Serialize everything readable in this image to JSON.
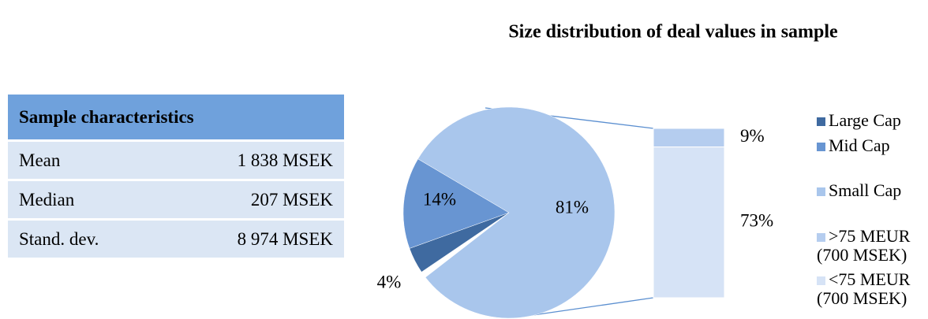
{
  "table": {
    "header": "Sample characteristics",
    "rows": [
      [
        "Mean",
        "1 838 MSEK"
      ],
      [
        "Median",
        "207 MSEK"
      ],
      [
        "Stand. dev.",
        "8 974 MSEK"
      ]
    ]
  },
  "chart_data": {
    "type": "pie",
    "title": "Size distribution of deal values in sample",
    "pie": {
      "categories": [
        "Large Cap",
        "Mid Cap",
        "Small Cap"
      ],
      "values": [
        4,
        14,
        81
      ],
      "value_labels": [
        "4%",
        "14%",
        "81%"
      ],
      "colors": [
        "#3f6aa0",
        "#6895d2",
        "#a9c6ec"
      ]
    },
    "bar": {
      "categories": [
        ">75 MEUR (700 MSEK)",
        "<75 MEUR (700 MSEK)"
      ],
      "values": [
        9,
        73
      ],
      "value_labels": [
        "9%",
        "73%"
      ],
      "colors": [
        "#b5cdef",
        "#d6e3f6"
      ]
    }
  }
}
